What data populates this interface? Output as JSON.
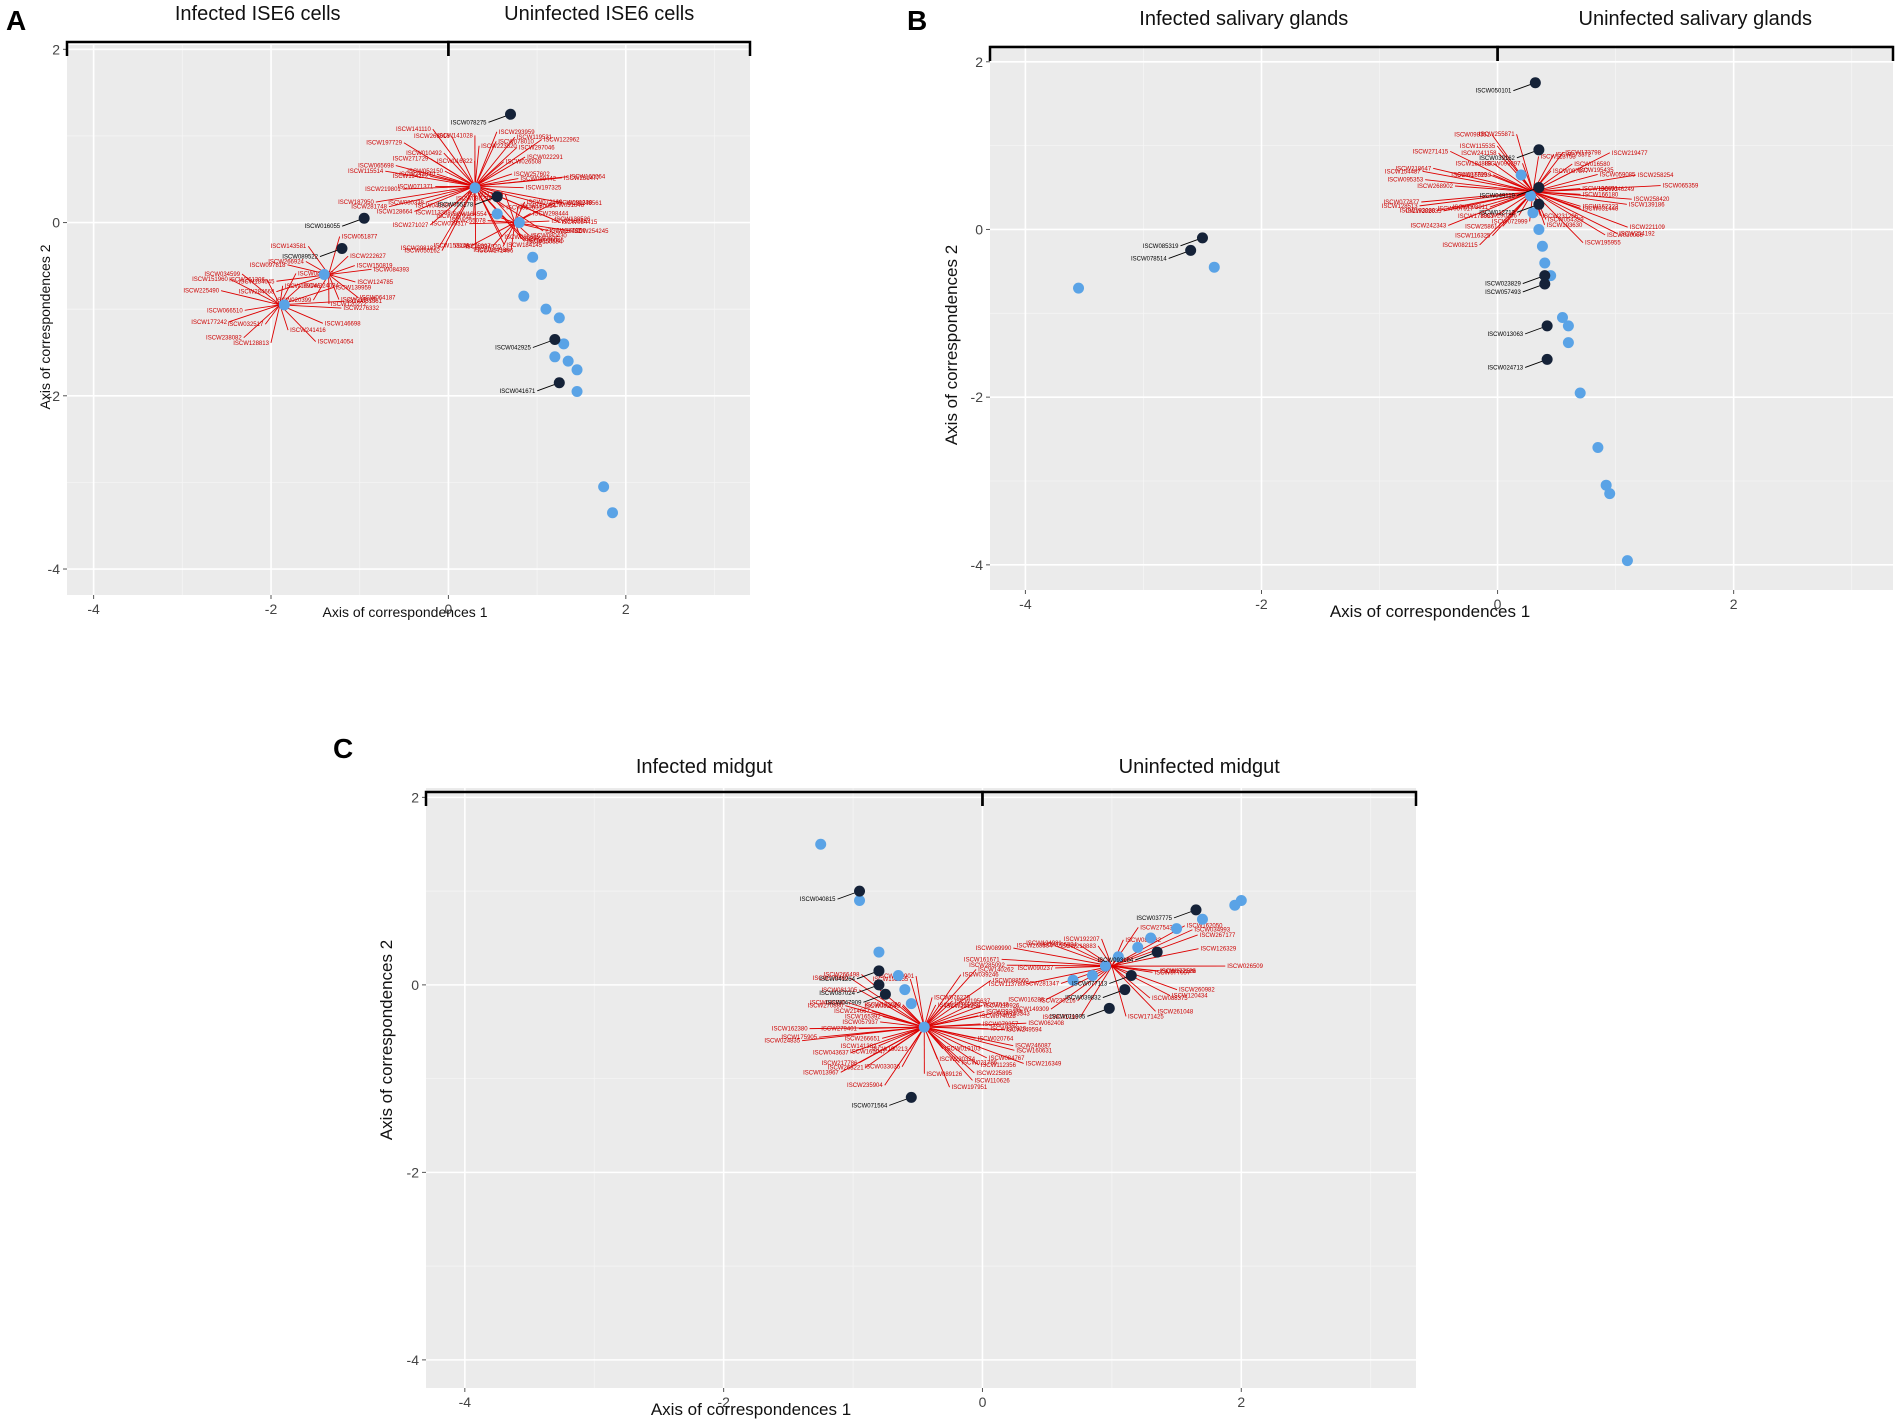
{
  "chart_data": [
    {
      "type": "scatter",
      "panel": "A",
      "xlabel": "Axis of correspondences 1",
      "ylabel": "Axis of correspondences 2",
      "xlim": [
        -4.3,
        3.4
      ],
      "ylim": [
        -4.3,
        2.05
      ],
      "xticks": [
        -4,
        -2,
        0,
        2
      ],
      "yticks": [
        -4,
        -2,
        0,
        2
      ],
      "groups": [
        {
          "label": "Infected ISE6 cells",
          "range": [
            -4.3,
            0
          ]
        },
        {
          "label": "Uninfected ISE6 cells",
          "range": [
            0,
            3.4
          ]
        }
      ],
      "hubs": [
        {
          "x": -1.9,
          "y": -0.95,
          "n": 18,
          "spread": 0.75
        },
        {
          "x": -1.35,
          "y": -0.6,
          "n": 14,
          "spread": 0.6
        },
        {
          "x": 0.3,
          "y": 0.42,
          "n": 48,
          "spread": 1.05
        },
        {
          "x": 0.75,
          "y": 0.0,
          "n": 18,
          "spread": 0.6
        }
      ],
      "blue_points": [
        [
          -1.85,
          -0.95
        ],
        [
          -1.4,
          -0.6
        ],
        [
          0.3,
          0.4
        ],
        [
          0.55,
          0.1
        ],
        [
          0.8,
          0.0
        ],
        [
          0.95,
          -0.4
        ],
        [
          1.05,
          -0.6
        ],
        [
          0.85,
          -0.85
        ],
        [
          1.1,
          -1.0
        ],
        [
          1.25,
          -1.1
        ],
        [
          1.3,
          -1.4
        ],
        [
          1.2,
          -1.55
        ],
        [
          1.35,
          -1.6
        ],
        [
          1.45,
          -1.7
        ],
        [
          1.45,
          -1.95
        ],
        [
          1.75,
          -3.05
        ],
        [
          1.85,
          -3.35
        ]
      ],
      "black_points": [
        [
          0.7,
          1.25
        ],
        [
          -0.95,
          0.05
        ],
        [
          -1.2,
          -0.3
        ],
        [
          1.2,
          -1.35
        ],
        [
          1.25,
          -1.85
        ],
        [
          0.55,
          0.3
        ]
      ]
    },
    {
      "type": "scatter",
      "panel": "B",
      "xlabel": "Axis of correspondences 1",
      "ylabel": "Axis of correspondences 2",
      "xlim": [
        -4.3,
        3.35
      ],
      "ylim": [
        -4.3,
        2.2
      ],
      "xticks": [
        -4,
        -2,
        0,
        2
      ],
      "yticks": [
        -4,
        -2,
        0,
        2
      ],
      "groups": [
        {
          "label": "Infected salivary glands",
          "range": [
            -4.3,
            0
          ]
        },
        {
          "label": "Uninfected salivary glands",
          "range": [
            0,
            3.35
          ]
        }
      ],
      "hubs": [
        {
          "x": 0.3,
          "y": 0.45,
          "n": 50,
          "spread": 1.0
        }
      ],
      "blue_points": [
        [
          -3.55,
          -0.7
        ],
        [
          -2.4,
          -0.45
        ],
        [
          0.2,
          0.65
        ],
        [
          0.28,
          0.4
        ],
        [
          0.3,
          0.2
        ],
        [
          0.35,
          0.0
        ],
        [
          0.38,
          -0.2
        ],
        [
          0.4,
          -0.4
        ],
        [
          0.45,
          -0.55
        ],
        [
          0.55,
          -1.05
        ],
        [
          0.6,
          -1.15
        ],
        [
          0.6,
          -1.35
        ],
        [
          0.7,
          -1.95
        ],
        [
          0.85,
          -2.6
        ],
        [
          0.92,
          -3.05
        ],
        [
          0.95,
          -3.15
        ],
        [
          1.1,
          -3.95
        ]
      ],
      "black_points": [
        [
          0.32,
          1.75
        ],
        [
          0.35,
          0.95
        ],
        [
          0.35,
          0.5
        ],
        [
          0.35,
          0.3
        ],
        [
          0.4,
          -0.55
        ],
        [
          0.4,
          -0.65
        ],
        [
          0.42,
          -1.15
        ],
        [
          0.42,
          -1.55
        ],
        [
          -2.5,
          -0.1
        ],
        [
          -2.6,
          -0.25
        ]
      ]
    },
    {
      "type": "scatter",
      "panel": "C",
      "xlabel": "Axis of correspondences 1",
      "ylabel": "Axis of correspondences 2",
      "xlim": [
        -4.3,
        3.35
      ],
      "ylim": [
        -4.3,
        2.1
      ],
      "xticks": [
        -4,
        -2,
        0,
        2
      ],
      "yticks": [
        -4,
        -2,
        0,
        2
      ],
      "groups": [
        {
          "label": "Infected midgut",
          "range": [
            -4.3,
            0
          ]
        },
        {
          "label": "Uninfected midgut",
          "range": [
            0,
            3.35
          ]
        }
      ],
      "hubs": [
        {
          "x": -0.45,
          "y": -0.45,
          "n": 55,
          "spread": 0.9
        },
        {
          "x": 1.0,
          "y": 0.2,
          "n": 30,
          "spread": 0.8
        }
      ],
      "blue_points": [
        [
          -1.25,
          1.5
        ],
        [
          -0.95,
          0.9
        ],
        [
          -0.8,
          0.35
        ],
        [
          -0.65,
          0.1
        ],
        [
          -0.6,
          -0.05
        ],
        [
          -0.55,
          -0.2
        ],
        [
          -0.45,
          -0.45
        ],
        [
          0.7,
          0.05
        ],
        [
          0.85,
          0.1
        ],
        [
          0.95,
          0.2
        ],
        [
          1.05,
          0.3
        ],
        [
          1.2,
          0.4
        ],
        [
          1.3,
          0.5
        ],
        [
          1.5,
          0.6
        ],
        [
          1.7,
          0.7
        ],
        [
          1.95,
          0.85
        ],
        [
          2.0,
          0.9
        ]
      ],
      "black_points": [
        [
          -0.95,
          1.0
        ],
        [
          -0.8,
          0.15
        ],
        [
          -0.8,
          0.0
        ],
        [
          -0.75,
          -0.1
        ],
        [
          -0.55,
          -1.2
        ],
        [
          1.15,
          0.1
        ],
        [
          1.1,
          -0.05
        ],
        [
          0.98,
          -0.25
        ],
        [
          1.35,
          0.35
        ],
        [
          1.65,
          0.8
        ]
      ]
    }
  ]
}
